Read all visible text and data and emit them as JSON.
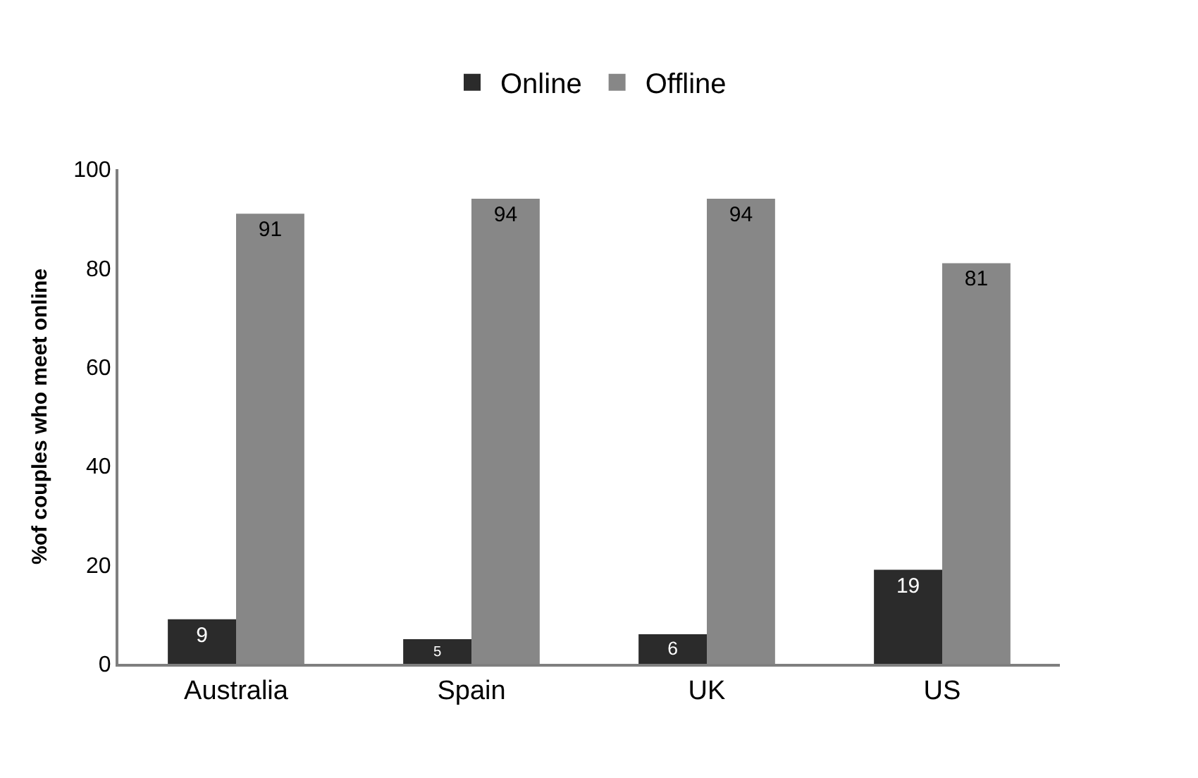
{
  "chart_data": {
    "type": "bar",
    "ylabel": "%of couples who meet online",
    "categories": [
      "Australia",
      "Spain",
      "UK",
      "US"
    ],
    "series": [
      {
        "name": "Online",
        "color": "#2b2b2b",
        "values": [
          9,
          5,
          6,
          19
        ]
      },
      {
        "name": "Offline",
        "color": "#878787",
        "values": [
          91,
          94,
          94,
          81
        ]
      }
    ],
    "ylim": [
      0,
      100
    ],
    "yticks": [
      0,
      20,
      40,
      60,
      80,
      100
    ],
    "grid": false,
    "legend": "top",
    "data_labels": true
  }
}
